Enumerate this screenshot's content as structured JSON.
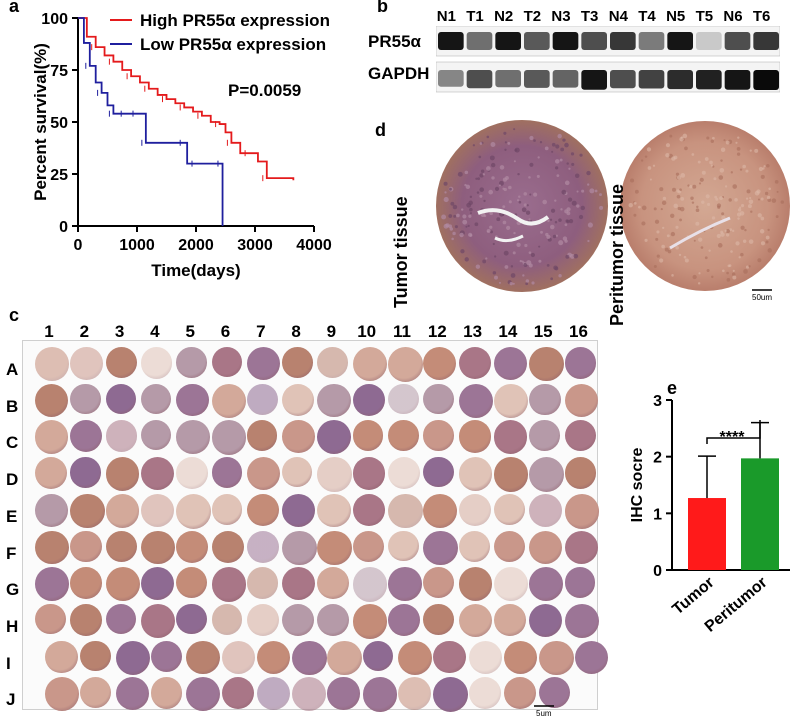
{
  "panels": {
    "a": "a",
    "b": "b",
    "c": "c",
    "d": "d",
    "e": "e"
  },
  "colors": {
    "high_series": "#e41a1c",
    "low_series": "#1f1f9e",
    "tumor_bar": "#ff1a1a",
    "peritumor_bar": "#1a9a2a",
    "tissue_dark": "#8f5a73",
    "tissue_light": "#c9957f"
  },
  "chart_a": {
    "type": "line",
    "title": "",
    "xlabel": "Time(days)",
    "ylabel": "Percent survival(%)",
    "xlim": [
      0,
      4000
    ],
    "ylim": [
      0,
      100
    ],
    "xticks": [
      0,
      1000,
      2000,
      3000,
      4000
    ],
    "yticks": [
      0,
      25,
      50,
      75,
      100
    ],
    "annotation": "P=0.0059",
    "series": [
      {
        "name": "High PR55α expression",
        "color": "#e41a1c",
        "x": [
          0,
          150,
          300,
          450,
          600,
          750,
          900,
          1050,
          1200,
          1350,
          1500,
          1650,
          1800,
          1950,
          2100,
          2250,
          2400,
          2500,
          2600,
          2750,
          2900,
          3050,
          3200,
          3400,
          3650
        ],
        "y": [
          100,
          91,
          86,
          82,
          79,
          75,
          72,
          69,
          66,
          63,
          61,
          59,
          57,
          55,
          53,
          50,
          49,
          45,
          40,
          35,
          35,
          31,
          23,
          23,
          22
        ]
      },
      {
        "name": "Low PR55α expression",
        "color": "#1f1f9e",
        "x": [
          0,
          100,
          200,
          300,
          400,
          500,
          600,
          700,
          800,
          900,
          1000,
          1100,
          1150,
          1500,
          1800,
          1850,
          2000,
          2300,
          2440,
          2450
        ],
        "y": [
          100,
          88,
          77,
          69,
          64,
          58,
          54,
          54,
          54,
          54,
          54,
          54,
          40,
          40,
          40,
          30,
          30,
          30,
          30,
          0
        ]
      }
    ]
  },
  "blot": {
    "lanes": [
      "N1",
      "T1",
      "N2",
      "T2",
      "N3",
      "T3",
      "N4",
      "T4",
      "N5",
      "T5",
      "N6",
      "T6"
    ],
    "rows": [
      "PR55α",
      "GAPDH"
    ],
    "pr55_intensity": [
      0.95,
      0.55,
      0.95,
      0.65,
      0.95,
      0.7,
      0.8,
      0.5,
      0.95,
      0.15,
      0.7,
      0.8
    ],
    "gapdh_intensity": [
      0.45,
      0.7,
      0.55,
      0.65,
      0.6,
      0.95,
      0.7,
      0.75,
      0.85,
      0.9,
      0.95,
      1.0
    ]
  },
  "tissue": {
    "tumor_label": "Tumor tissue",
    "peritumor_label": "Peritumor tissue",
    "scale_label": "50um"
  },
  "tma": {
    "columns": [
      "1",
      "2",
      "3",
      "4",
      "5",
      "6",
      "7",
      "8",
      "9",
      "10",
      "11",
      "12",
      "13",
      "14",
      "15",
      "16"
    ],
    "rows": [
      "A",
      "B",
      "C",
      "D",
      "E",
      "F",
      "G",
      "H",
      "I",
      "J"
    ],
    "scale_label": "5um"
  },
  "chart_e": {
    "type": "bar",
    "categories": [
      "Tumor",
      "Peritumor"
    ],
    "values": [
      1.27,
      1.97
    ],
    "errors": [
      0.74,
      0.63
    ],
    "colors": [
      "#ff1a1a",
      "#1a9a2a"
    ],
    "ylabel": "IHC socre",
    "ylim": [
      0,
      3
    ],
    "yticks": [
      0,
      1,
      2,
      3
    ],
    "significance": "****"
  }
}
